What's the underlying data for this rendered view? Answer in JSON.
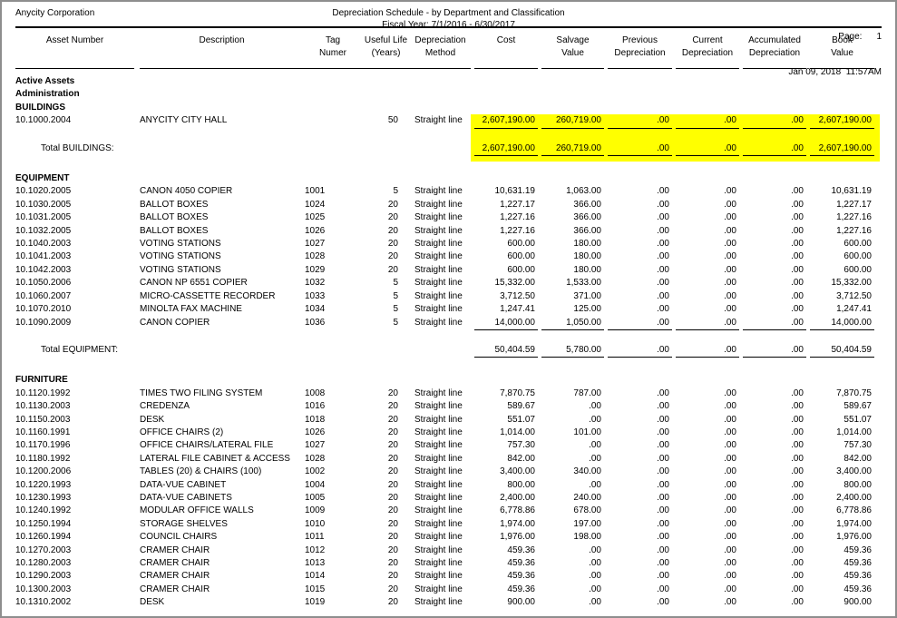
{
  "header": {
    "company": "Anycity Corporation",
    "title": "Depreciation Schedule - by Department and Classification",
    "fiscal_year": "Fiscal Year: 7/1/2016 - 6/30/2017",
    "page_label": "Page:",
    "page_number": "1",
    "datetime": "Jan 09, 2018  11:57AM"
  },
  "highlight_color": "#ffff00",
  "table": {
    "columns": [
      {
        "line1": "Asset Number",
        "line2": ""
      },
      {
        "line1": "Description",
        "line2": ""
      },
      {
        "line1": "Tag",
        "line2": "Numer"
      },
      {
        "line1": "Useful Life",
        "line2": "(Years)"
      },
      {
        "line1": "Depreciation",
        "line2": "Method"
      },
      {
        "line1": "Cost",
        "line2": ""
      },
      {
        "line1": "Salvage",
        "line2": "Value"
      },
      {
        "line1": "Previous",
        "line2": "Depreciation"
      },
      {
        "line1": "Current",
        "line2": "Depreciation"
      },
      {
        "line1": "Accumulated",
        "line2": "Depreciation"
      },
      {
        "line1": "Book",
        "line2": "Value"
      }
    ],
    "rows": [
      {
        "t": "label",
        "text": "Active Assets"
      },
      {
        "t": "label",
        "text": "Administration"
      },
      {
        "t": "label",
        "text": "BUILDINGS"
      },
      {
        "t": "row",
        "hl": true,
        "rule": true,
        "c": [
          "10.1000.2004",
          "ANYCITY CITY HALL",
          "",
          "50",
          "Straight line",
          "2,607,190.00",
          "260,719.00",
          ".00",
          ".00",
          ".00",
          "2,607,190.00"
        ]
      },
      {
        "t": "total",
        "hl": true,
        "label": "Total BUILDINGS:",
        "v": [
          "2,607,190.00",
          "260,719.00",
          ".00",
          ".00",
          ".00",
          "2,607,190.00"
        ]
      },
      {
        "t": "spacer"
      },
      {
        "t": "label",
        "text": "EQUIPMENT"
      },
      {
        "t": "row",
        "c": [
          "10.1020.2005",
          "CANON 4050 COPIER",
          "1001",
          "5",
          "Straight line",
          "10,631.19",
          "1,063.00",
          ".00",
          ".00",
          ".00",
          "10,631.19"
        ]
      },
      {
        "t": "row",
        "c": [
          "10.1030.2005",
          "BALLOT BOXES",
          "1024",
          "20",
          "Straight line",
          "1,227.17",
          "366.00",
          ".00",
          ".00",
          ".00",
          "1,227.17"
        ]
      },
      {
        "t": "row",
        "c": [
          "10.1031.2005",
          "BALLOT BOXES",
          "1025",
          "20",
          "Straight line",
          "1,227.16",
          "366.00",
          ".00",
          ".00",
          ".00",
          "1,227.16"
        ]
      },
      {
        "t": "row",
        "c": [
          "10.1032.2005",
          "BALLOT BOXES",
          "1026",
          "20",
          "Straight line",
          "1,227.16",
          "366.00",
          ".00",
          ".00",
          ".00",
          "1,227.16"
        ]
      },
      {
        "t": "row",
        "c": [
          "10.1040.2003",
          "VOTING STATIONS",
          "1027",
          "20",
          "Straight line",
          "600.00",
          "180.00",
          ".00",
          ".00",
          ".00",
          "600.00"
        ]
      },
      {
        "t": "row",
        "c": [
          "10.1041.2003",
          "VOTING STATIONS",
          "1028",
          "20",
          "Straight line",
          "600.00",
          "180.00",
          ".00",
          ".00",
          ".00",
          "600.00"
        ]
      },
      {
        "t": "row",
        "c": [
          "10.1042.2003",
          "VOTING STATIONS",
          "1029",
          "20",
          "Straight line",
          "600.00",
          "180.00",
          ".00",
          ".00",
          ".00",
          "600.00"
        ]
      },
      {
        "t": "row",
        "c": [
          "10.1050.2006",
          "CANON NP 6551 COPIER",
          "1032",
          "5",
          "Straight line",
          "15,332.00",
          "1,533.00",
          ".00",
          ".00",
          ".00",
          "15,332.00"
        ]
      },
      {
        "t": "row",
        "c": [
          "10.1060.2007",
          "MICRO-CASSETTE RECORDER",
          "1033",
          "5",
          "Straight line",
          "3,712.50",
          "371.00",
          ".00",
          ".00",
          ".00",
          "3,712.50"
        ]
      },
      {
        "t": "row",
        "c": [
          "10.1070.2010",
          "MINOLTA FAX MACHINE",
          "1034",
          "5",
          "Straight line",
          "1,247.41",
          "125.00",
          ".00",
          ".00",
          ".00",
          "1,247.41"
        ]
      },
      {
        "t": "row",
        "rule": true,
        "c": [
          "10.1090.2009",
          "CANON COPIER",
          "1036",
          "5",
          "Straight line",
          "14,000.00",
          "1,050.00",
          ".00",
          ".00",
          ".00",
          "14,000.00"
        ]
      },
      {
        "t": "total",
        "label": "Total EQUIPMENT:",
        "v": [
          "50,404.59",
          "5,780.00",
          ".00",
          ".00",
          ".00",
          "50,404.59"
        ]
      },
      {
        "t": "spacer"
      },
      {
        "t": "label",
        "text": "FURNITURE"
      },
      {
        "t": "row",
        "c": [
          "10.1120.1992",
          "TIMES TWO FILING SYSTEM",
          "1008",
          "20",
          "Straight line",
          "7,870.75",
          "787.00",
          ".00",
          ".00",
          ".00",
          "7,870.75"
        ]
      },
      {
        "t": "row",
        "c": [
          "10.1130.2003",
          "CREDENZA",
          "1016",
          "20",
          "Straight line",
          "589.67",
          ".00",
          ".00",
          ".00",
          ".00",
          "589.67"
        ]
      },
      {
        "t": "row",
        "c": [
          "10.1150.2003",
          "DESK",
          "1018",
          "20",
          "Straight line",
          "551.07",
          ".00",
          ".00",
          ".00",
          ".00",
          "551.07"
        ]
      },
      {
        "t": "row",
        "c": [
          "10.1160.1991",
          "OFFICE CHAIRS (2)",
          "1026",
          "20",
          "Straight line",
          "1,014.00",
          "101.00",
          ".00",
          ".00",
          ".00",
          "1,014.00"
        ]
      },
      {
        "t": "row",
        "c": [
          "10.1170.1996",
          "OFFICE CHAIRS/LATERAL FILE",
          "1027",
          "20",
          "Straight line",
          "757.30",
          ".00",
          ".00",
          ".00",
          ".00",
          "757.30"
        ]
      },
      {
        "t": "row",
        "c": [
          "10.1180.1992",
          "LATERAL FILE CABINET & ACCESS",
          "1028",
          "20",
          "Straight line",
          "842.00",
          ".00",
          ".00",
          ".00",
          ".00",
          "842.00"
        ]
      },
      {
        "t": "row",
        "c": [
          "10.1200.2006",
          "TABLES (20) & CHAIRS (100)",
          "1002",
          "20",
          "Straight line",
          "3,400.00",
          "340.00",
          ".00",
          ".00",
          ".00",
          "3,400.00"
        ]
      },
      {
        "t": "row",
        "c": [
          "10.1220.1993",
          "DATA-VUE CABINET",
          "1004",
          "20",
          "Straight line",
          "800.00",
          ".00",
          ".00",
          ".00",
          ".00",
          "800.00"
        ]
      },
      {
        "t": "row",
        "c": [
          "10.1230.1993",
          "DATA-VUE CABINETS",
          "1005",
          "20",
          "Straight line",
          "2,400.00",
          "240.00",
          ".00",
          ".00",
          ".00",
          "2,400.00"
        ]
      },
      {
        "t": "row",
        "c": [
          "10.1240.1992",
          "MODULAR OFFICE WALLS",
          "1009",
          "20",
          "Straight line",
          "6,778.86",
          "678.00",
          ".00",
          ".00",
          ".00",
          "6,778.86"
        ]
      },
      {
        "t": "row",
        "c": [
          "10.1250.1994",
          "STORAGE SHELVES",
          "1010",
          "20",
          "Straight line",
          "1,974.00",
          "197.00",
          ".00",
          ".00",
          ".00",
          "1,974.00"
        ]
      },
      {
        "t": "row",
        "c": [
          "10.1260.1994",
          "COUNCIL CHAIRS",
          "1011",
          "20",
          "Straight line",
          "1,976.00",
          "198.00",
          ".00",
          ".00",
          ".00",
          "1,976.00"
        ]
      },
      {
        "t": "row",
        "c": [
          "10.1270.2003",
          "CRAMER CHAIR",
          "1012",
          "20",
          "Straight line",
          "459.36",
          ".00",
          ".00",
          ".00",
          ".00",
          "459.36"
        ]
      },
      {
        "t": "row",
        "c": [
          "10.1280.2003",
          "CRAMER CHAIR",
          "1013",
          "20",
          "Straight line",
          "459.36",
          ".00",
          ".00",
          ".00",
          ".00",
          "459.36"
        ]
      },
      {
        "t": "row",
        "c": [
          "10.1290.2003",
          "CRAMER CHAIR",
          "1014",
          "20",
          "Straight line",
          "459.36",
          ".00",
          ".00",
          ".00",
          ".00",
          "459.36"
        ]
      },
      {
        "t": "row",
        "c": [
          "10.1300.2003",
          "CRAMER CHAIR",
          "1015",
          "20",
          "Straight line",
          "459.36",
          ".00",
          ".00",
          ".00",
          ".00",
          "459.36"
        ]
      },
      {
        "t": "row",
        "c": [
          "10.1310.2002",
          "DESK",
          "1019",
          "20",
          "Straight line",
          "900.00",
          ".00",
          ".00",
          ".00",
          ".00",
          "900.00"
        ]
      }
    ]
  }
}
